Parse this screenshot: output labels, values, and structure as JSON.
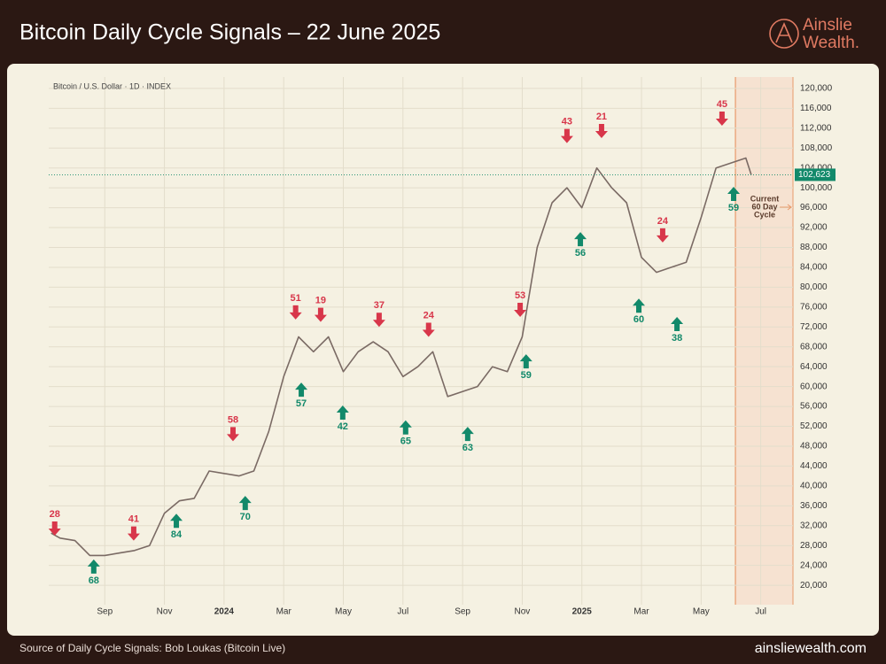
{
  "header": {
    "title": "Bitcoin Daily Cycle Signals – 22 June 2025",
    "logo_name": "Ainslie",
    "logo_suffix": "Wealth."
  },
  "footer": {
    "source": "Source of Daily Cycle Signals: Bob Loukas (Bitcoin Live)",
    "url": "ainsliewealth.com"
  },
  "chart_data": {
    "type": "line",
    "subtitle": "Bitcoin / U.S. Dollar · 1D · INDEX",
    "series": [
      {
        "name": "BTCUSD",
        "color": "#7a6a64",
        "x": [
          -5.8,
          -5.5,
          -5,
          -4.5,
          -4,
          -3.5,
          -3,
          -2.5,
          -2,
          -1.5,
          -1,
          -0.5,
          0,
          0.5,
          1,
          1.5,
          2,
          2.5,
          3,
          3.5,
          4,
          4.5,
          5,
          5.5,
          6,
          6.5,
          7,
          7.5,
          8,
          8.5,
          9,
          9.5,
          10,
          10.5,
          11,
          11.5,
          12,
          12.5,
          13,
          13.5,
          14,
          14.5,
          15,
          15.5,
          16,
          16.5,
          17,
          17.5,
          17.68
        ],
        "values": [
          30500,
          29500,
          29000,
          26000,
          26000,
          26500,
          27000,
          28000,
          34500,
          37000,
          37500,
          43000,
          42500,
          42000,
          43000,
          51000,
          62000,
          70000,
          67000,
          70000,
          63000,
          67000,
          69000,
          67000,
          62000,
          64000,
          67000,
          58000,
          59000,
          60000,
          64000,
          63000,
          70000,
          88000,
          97000,
          100000,
          96000,
          104000,
          100000,
          97000,
          86000,
          83000,
          84000,
          85000,
          94000,
          104000,
          105000,
          106000,
          102623
        ]
      }
    ],
    "last_price": {
      "value": 102623,
      "label": "102,623"
    },
    "signals": [
      {
        "kind": "top",
        "x": -5.68,
        "price": 30000,
        "days": 28
      },
      {
        "kind": "top",
        "x": -3.03,
        "price": 29000,
        "days": 41
      },
      {
        "kind": "top",
        "x": 0.3,
        "price": 49000,
        "days": 58
      },
      {
        "kind": "top",
        "x": 2.4,
        "price": 73500,
        "days": 51
      },
      {
        "kind": "top",
        "x": 3.24,
        "price": 73000,
        "days": 19
      },
      {
        "kind": "top",
        "x": 5.2,
        "price": 72000,
        "days": 37
      },
      {
        "kind": "top",
        "x": 6.86,
        "price": 70000,
        "days": 24
      },
      {
        "kind": "top",
        "x": 9.93,
        "price": 74000,
        "days": 53
      },
      {
        "kind": "top",
        "x": 11.5,
        "price": 109000,
        "days": 43
      },
      {
        "kind": "top",
        "x": 12.66,
        "price": 110000,
        "days": 21
      },
      {
        "kind": "top",
        "x": 14.71,
        "price": 89000,
        "days": 24
      },
      {
        "kind": "top",
        "x": 16.7,
        "price": 112500,
        "days": 45
      },
      {
        "kind": "bottom",
        "x": -4.37,
        "price": 25200,
        "days": 68
      },
      {
        "kind": "bottom",
        "x": -1.6,
        "price": 34400,
        "days": 84
      },
      {
        "kind": "bottom",
        "x": 0.71,
        "price": 38000,
        "days": 70
      },
      {
        "kind": "bottom",
        "x": 2.59,
        "price": 60800,
        "days": 57
      },
      {
        "kind": "bottom",
        "x": 3.98,
        "price": 56200,
        "days": 42
      },
      {
        "kind": "bottom",
        "x": 6.09,
        "price": 53200,
        "days": 65
      },
      {
        "kind": "bottom",
        "x": 8.17,
        "price": 51900,
        "days": 63
      },
      {
        "kind": "bottom",
        "x": 10.13,
        "price": 66500,
        "days": 59
      },
      {
        "kind": "bottom",
        "x": 11.95,
        "price": 91100,
        "days": 56
      },
      {
        "kind": "bottom",
        "x": 13.91,
        "price": 77700,
        "days": 60
      },
      {
        "kind": "bottom",
        "x": 15.19,
        "price": 74000,
        "days": 38
      },
      {
        "kind": "bottom",
        "x": 17.09,
        "price": 100200,
        "days": 59
      }
    ],
    "current_cycle": {
      "start": 17.15,
      "label_lines": [
        "Current",
        "60 Day",
        "Cycle"
      ]
    },
    "xlim": [
      -5.88,
      19.08
    ],
    "xticks": [
      {
        "value": -4,
        "label": "Sep"
      },
      {
        "value": -2,
        "label": "Nov"
      },
      {
        "value": 0,
        "label": "2024"
      },
      {
        "value": 2,
        "label": "Mar"
      },
      {
        "value": 4,
        "label": "May"
      },
      {
        "value": 6,
        "label": "Jul"
      },
      {
        "value": 8,
        "label": "Sep"
      },
      {
        "value": 10,
        "label": "Nov"
      },
      {
        "value": 12,
        "label": "2025"
      },
      {
        "value": 14,
        "label": "Mar"
      },
      {
        "value": 16,
        "label": "May"
      },
      {
        "value": 18,
        "label": "Jul"
      }
    ],
    "ylim": [
      16100,
      122300
    ],
    "yticks": [
      {
        "value": 20000,
        "label": "20,000"
      },
      {
        "value": 24000,
        "label": "24,000"
      },
      {
        "value": 28000,
        "label": "28,000"
      },
      {
        "value": 32000,
        "label": "32,000"
      },
      {
        "value": 36000,
        "label": "36,000"
      },
      {
        "value": 40000,
        "label": "40,000"
      },
      {
        "value": 44000,
        "label": "44,000"
      },
      {
        "value": 48000,
        "label": "48,000"
      },
      {
        "value": 52000,
        "label": "52,000"
      },
      {
        "value": 56000,
        "label": "56,000"
      },
      {
        "value": 60000,
        "label": "60,000"
      },
      {
        "value": 64000,
        "label": "64,000"
      },
      {
        "value": 68000,
        "label": "68,000"
      },
      {
        "value": 72000,
        "label": "72,000"
      },
      {
        "value": 76000,
        "label": "76,000"
      },
      {
        "value": 80000,
        "label": "80,000"
      },
      {
        "value": 84000,
        "label": "84,000"
      },
      {
        "value": 88000,
        "label": "88,000"
      },
      {
        "value": 92000,
        "label": "92,000"
      },
      {
        "value": 96000,
        "label": "96,000"
      },
      {
        "value": 100000,
        "label": "100,000"
      },
      {
        "value": 104000,
        "label": "104,000"
      },
      {
        "value": 108000,
        "label": "108,000"
      },
      {
        "value": 112000,
        "label": "112,000"
      },
      {
        "value": 116000,
        "label": "116,000"
      },
      {
        "value": 120000,
        "label": "120,000"
      }
    ],
    "grid": true,
    "top_color": "#d8364a",
    "bottom_color": "#12896a"
  }
}
